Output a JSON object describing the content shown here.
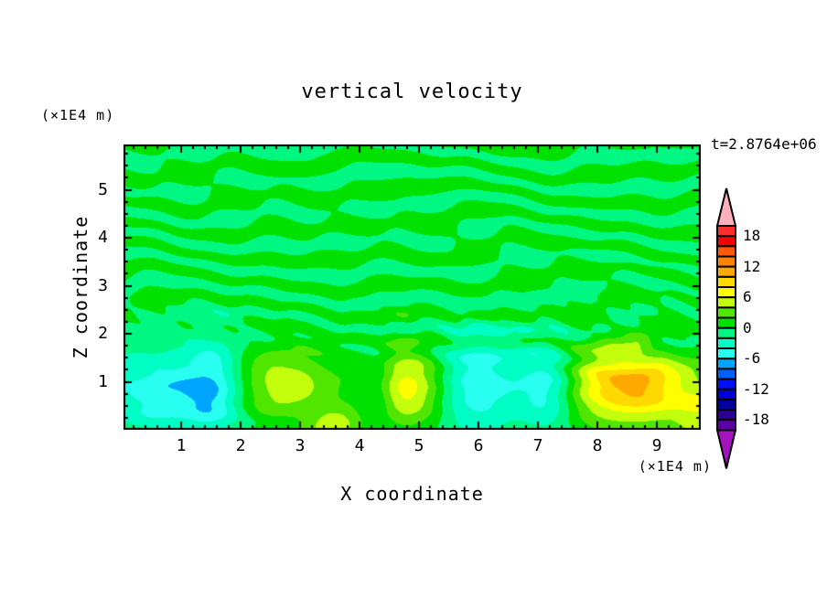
{
  "page": {
    "background": "#FFFFFF",
    "text_color": "#000000",
    "frame_color": "#000000"
  },
  "title": "vertical velocity",
  "time_label": "t=2.8764e+06",
  "axis_unit_top_left": "(×1E4 m)",
  "axis_unit_bottom_right": "(×1E4 m)",
  "x_axis": {
    "label": "X coordinate",
    "tick_labels": [
      "1",
      "2",
      "3",
      "4",
      "5",
      "6",
      "7",
      "8",
      "9"
    ],
    "min": 0.03,
    "max": 9.74,
    "major_step": 1,
    "minor_step": 0.2
  },
  "z_axis": {
    "label": "Z coordinate",
    "tick_labels": [
      "1",
      "2",
      "3",
      "4",
      "5"
    ],
    "min": 0,
    "max": 5.94,
    "major_step": 1,
    "minor_step": 0.25
  },
  "colorbar": {
    "labels": [
      "18",
      "12",
      "6",
      "0",
      "-6",
      "-12",
      "-18"
    ],
    "level_min": -20,
    "level_max": 20,
    "level_step": 2,
    "colors_high_to_low": [
      "#FF2D2D",
      "#F40000",
      "#FF5A00",
      "#FF8200",
      "#FFA800",
      "#FFD900",
      "#FFFF00",
      "#C3FF0C",
      "#50E600",
      "#00E100",
      "#00F882",
      "#00FDC3",
      "#29FFF0",
      "#00A5FF",
      "#0060FF",
      "#0011FF",
      "#0000D4",
      "#00009E",
      "#290093",
      "#5E00A8"
    ],
    "over_color": "#FFB0BC",
    "under_color": "#A513BE"
  },
  "chart_data": {
    "type": "filled_contour",
    "title": "vertical velocity",
    "xlabel": "X coordinate (×1E4 m)",
    "ylabel": "Z coordinate (×1E4 m)",
    "time_annotation": "t=2.8764e+06",
    "x_range": [
      0.03,
      9.74
    ],
    "z_range": [
      0,
      5.94
    ],
    "contour_levels": {
      "min": -20,
      "max": 20,
      "step": 2
    },
    "field_description": "Vertical velocity field: weak horizontal streaks alternating between -2..0 and 0..2 aloft; near-surface (z<1.8) convective cells with negative (cyan, down to -6) and positive (yellow-green to yellow, up to +8) cores",
    "streaks": {
      "band_freq_z": 10.6,
      "warp": [
        [
          0.8,
          1.4,
          2.0
        ],
        [
          1.7,
          2.3,
          1.15
        ],
        [
          3.1,
          0.9,
          0.6
        ],
        [
          6.3,
          -1.2,
          0.35
        ]
      ],
      "amp": 1.5,
      "amp_mod": [
        0.52,
        1.8,
        0.9,
        0.42,
        0.66
      ],
      "detail": [
        4.7,
        6.2,
        0.5,
        0.3
      ],
      "ragged": [
        9.5,
        13.5,
        0.55,
        2.3,
        0.5
      ],
      "z_fade": [
        0.7,
        2.1,
        0.3
      ],
      "bias": 0.08,
      "clip": 1.92
    },
    "blobs": [
      {
        "x": 0.75,
        "z": 0.8,
        "sx": 0.78,
        "sz": 0.6,
        "amp": -5.6
      },
      {
        "x": 1.55,
        "z": 0.9,
        "sx": 0.32,
        "sz": 0.78,
        "amp": -4.0
      },
      {
        "x": 4.3,
        "z": 0.85,
        "sx": 0.22,
        "sz": 0.55,
        "amp": -3.6
      },
      {
        "x": 5.95,
        "z": 0.95,
        "sx": 0.52,
        "sz": 0.72,
        "amp": -5.7
      },
      {
        "x": 7.15,
        "z": 0.9,
        "sx": 0.34,
        "sz": 0.62,
        "amp": -5.2
      },
      {
        "x": 2.7,
        "z": 0.95,
        "sx": 0.6,
        "sz": 0.5,
        "amp": 5.4
      },
      {
        "x": 4.78,
        "z": 0.9,
        "sx": 0.48,
        "sz": 0.55,
        "amp": 7.4
      },
      {
        "x": 8.15,
        "z": 0.95,
        "sx": 0.52,
        "sz": 0.55,
        "amp": 7.5
      },
      {
        "x": 8.9,
        "z": 0.9,
        "sx": 0.45,
        "sz": 0.5,
        "amp": 7.1
      },
      {
        "x": 9.75,
        "z": 0.45,
        "sx": 0.35,
        "sz": 0.5,
        "amp": 5.2
      },
      {
        "x": 3.55,
        "z": 0.05,
        "sx": 0.3,
        "sz": 0.28,
        "amp": 5.0
      }
    ]
  }
}
